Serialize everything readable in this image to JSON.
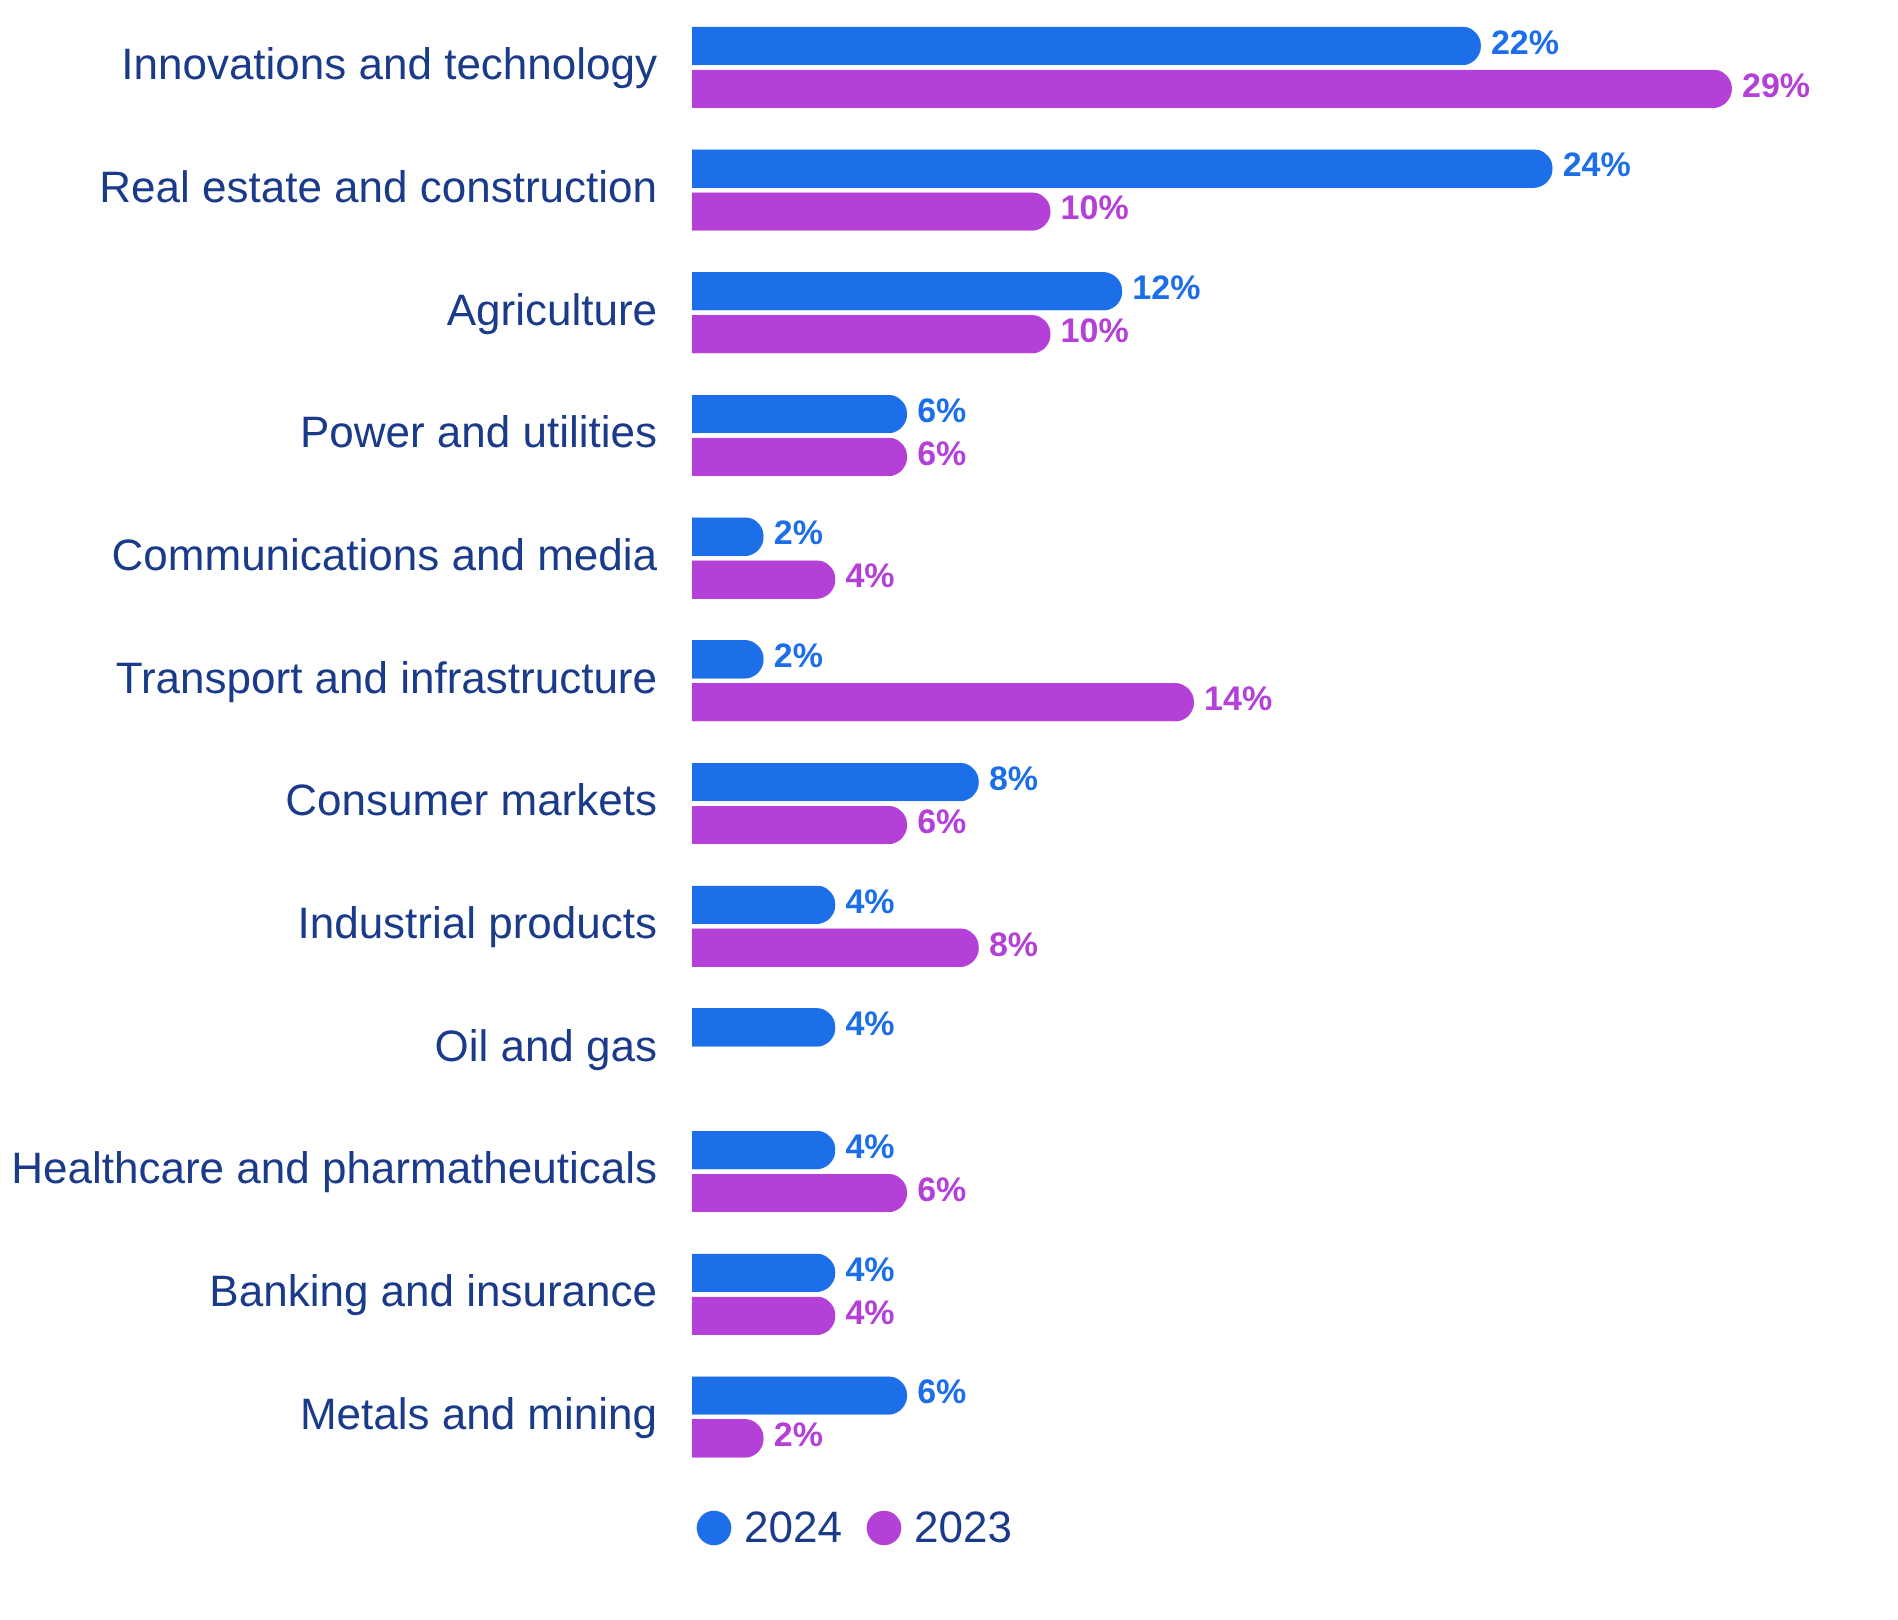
{
  "chart_data": {
    "type": "bar",
    "orientation": "horizontal",
    "legend": "bottom",
    "categories": [
      "Innovations and technology",
      "Real estate and construction",
      "Agriculture",
      "Power and utilities",
      "Communications and media",
      "Transport and infrastructure",
      "Consumer markets",
      "Industrial products",
      "Oil and gas",
      "Healthcare and pharmatheuticals",
      "Banking and insurance",
      "Metals and mining"
    ],
    "series": [
      {
        "name": "2024",
        "color": "#1c6fe8",
        "values": [
          22,
          24,
          12,
          6,
          2,
          2,
          8,
          4,
          4,
          4,
          4,
          6
        ],
        "value_labels": [
          "22%",
          "24%",
          "12%",
          "6%",
          "2%",
          "2%",
          "8%",
          "4%",
          "4%",
          "4%",
          "4%",
          "6%"
        ]
      },
      {
        "name": "2023",
        "color": "#b440d8",
        "values": [
          29,
          10,
          10,
          6,
          4,
          14,
          6,
          8,
          null,
          6,
          4,
          2
        ],
        "value_labels": [
          "29%",
          "10%",
          "10%",
          "6%",
          "4%",
          "14%",
          "6%",
          "8%",
          null,
          "6%",
          "4%",
          "2%"
        ]
      }
    ]
  }
}
